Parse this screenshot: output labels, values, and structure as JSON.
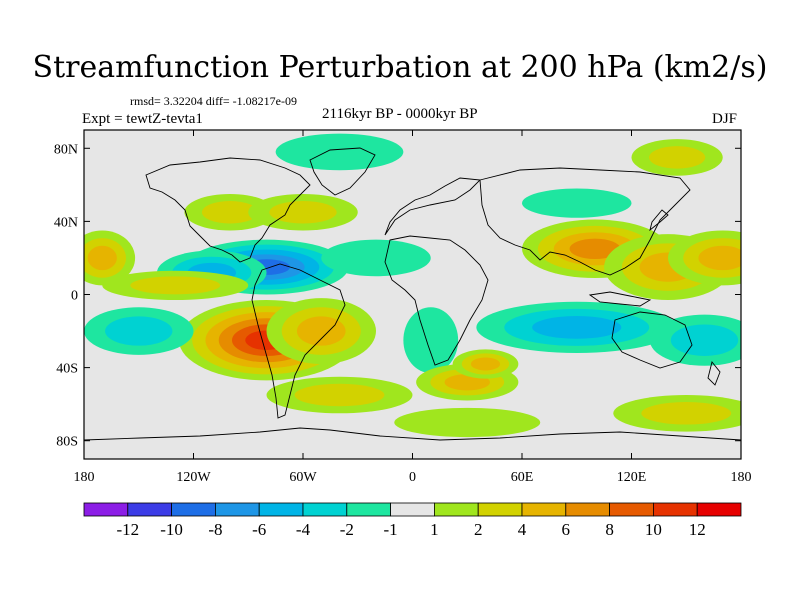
{
  "chart_data": {
    "type": "heatmap",
    "title": "Streamfunction Perturbation at 200 hPa (km2/s)",
    "subtitle_left": "Expt = tewtZ-tevta1",
    "subtitle_center": "2116kyr BP - 0000kyr BP",
    "subtitle_right": "DJF",
    "stats": "rmsd= 3.32204 diff= -1.08217e-09",
    "x_ticks": [
      "180",
      "120W",
      "60W",
      "0",
      "60E",
      "120E",
      "180"
    ],
    "y_ticks": [
      "80N",
      "40N",
      "0",
      "40S",
      "80S"
    ],
    "xlim": [
      -180,
      180
    ],
    "ylim": [
      -90,
      90
    ],
    "colorbar": {
      "labels": [
        "-12",
        "-10",
        "-8",
        "-6",
        "-4",
        "-2",
        "-1",
        "1",
        "2",
        "4",
        "6",
        "8",
        "10",
        "12"
      ],
      "colors": [
        "#8c1ee6",
        "#3c3ce6",
        "#1e6ee6",
        "#1e96e6",
        "#00b4e6",
        "#00d2d2",
        "#1ee6a0",
        "#e6e6e6",
        "#a0e61e",
        "#d2d200",
        "#e6b400",
        "#e68c00",
        "#e65a00",
        "#e63200",
        "#e60000"
      ]
    },
    "blobs": [
      {
        "lon": -80,
        "lat": -25,
        "rx": 48,
        "ry": 22,
        "v": 11
      },
      {
        "lon": -50,
        "lat": -20,
        "rx": 30,
        "ry": 18,
        "v": 6
      },
      {
        "lon": 100,
        "lat": 25,
        "rx": 40,
        "ry": 16,
        "v": 7
      },
      {
        "lon": 140,
        "lat": 15,
        "rx": 35,
        "ry": 18,
        "v": 5
      },
      {
        "lon": 170,
        "lat": 20,
        "rx": 30,
        "ry": 15,
        "v": 5
      },
      {
        "lon": -170,
        "lat": 20,
        "rx": 18,
        "ry": 15,
        "v": 6
      },
      {
        "lon": -80,
        "lat": 15,
        "rx": 45,
        "ry": 15,
        "v": -9
      },
      {
        "lon": -110,
        "lat": 12,
        "rx": 30,
        "ry": 12,
        "v": -6
      },
      {
        "lon": 90,
        "lat": -18,
        "rx": 55,
        "ry": 14,
        "v": -6
      },
      {
        "lon": 160,
        "lat": -25,
        "rx": 30,
        "ry": 14,
        "v": -4
      },
      {
        "lon": -150,
        "lat": -20,
        "rx": 30,
        "ry": 13,
        "v": -4
      },
      {
        "lon": -20,
        "lat": 20,
        "rx": 30,
        "ry": 10,
        "v": -2
      },
      {
        "lon": 10,
        "lat": -25,
        "rx": 15,
        "ry": 18,
        "v": -2
      },
      {
        "lon": -40,
        "lat": 78,
        "rx": 35,
        "ry": 10,
        "v": -2
      },
      {
        "lon": 145,
        "lat": 75,
        "rx": 25,
        "ry": 10,
        "v": 3
      },
      {
        "lon": -130,
        "lat": 5,
        "rx": 40,
        "ry": 8,
        "v": 3
      },
      {
        "lon": 30,
        "lat": -48,
        "rx": 28,
        "ry": 10,
        "v": 5
      },
      {
        "lon": -40,
        "lat": -55,
        "rx": 40,
        "ry": 10,
        "v": 4
      },
      {
        "lon": 30,
        "lat": -70,
        "rx": 40,
        "ry": 8,
        "v": 2
      },
      {
        "lon": 150,
        "lat": -65,
        "rx": 40,
        "ry": 10,
        "v": 4
      },
      {
        "lon": -100,
        "lat": 45,
        "rx": 25,
        "ry": 10,
        "v": 3
      },
      {
        "lon": -60,
        "lat": 45,
        "rx": 30,
        "ry": 10,
        "v": 3
      },
      {
        "lon": 90,
        "lat": 50,
        "rx": 30,
        "ry": 8,
        "v": -2
      },
      {
        "lon": 40,
        "lat": -38,
        "rx": 18,
        "ry": 8,
        "v": 5
      }
    ]
  }
}
